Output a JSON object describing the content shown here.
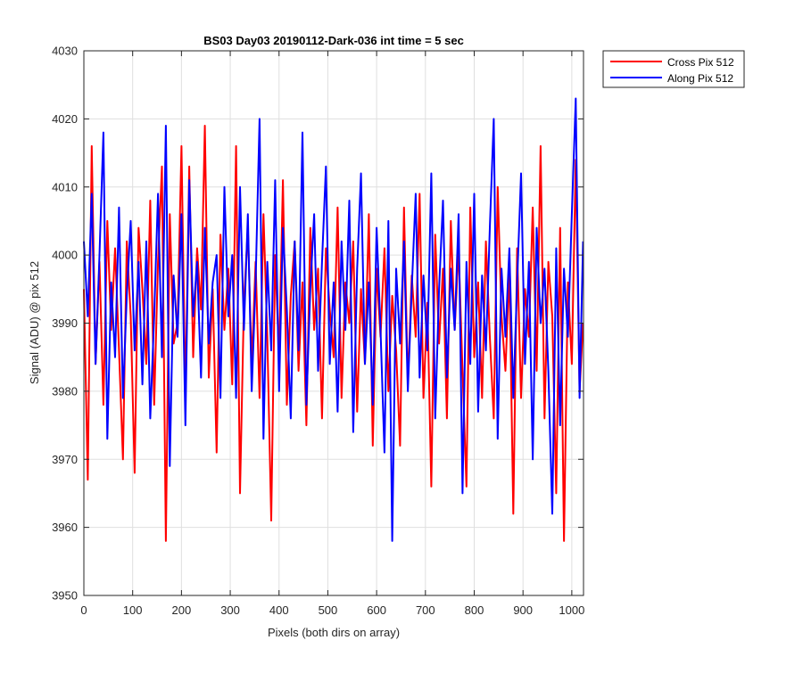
{
  "chart_data": {
    "type": "line",
    "title": "BS03 Day03 20190112-Dark-036 int time = 5 sec",
    "xlabel": "Pixels (both dirs on array)",
    "ylabel": "Signal (ADU) @ pix 512",
    "xlim": [
      0,
      1024
    ],
    "ylim": [
      3950,
      4030
    ],
    "xticks": [
      0,
      100,
      200,
      300,
      400,
      500,
      600,
      700,
      800,
      900,
      1000
    ],
    "yticks": [
      3950,
      3960,
      3970,
      3980,
      3990,
      4000,
      4010,
      4020,
      4030
    ],
    "grid": true,
    "legend_position": "outside-top-right",
    "series": [
      {
        "name": "Cross Pix 512",
        "color": "#ff0000",
        "x": [
          0,
          8,
          16,
          24,
          32,
          40,
          48,
          56,
          64,
          72,
          80,
          88,
          96,
          104,
          112,
          120,
          128,
          136,
          144,
          152,
          160,
          168,
          176,
          184,
          192,
          200,
          208,
          216,
          224,
          232,
          240,
          248,
          256,
          264,
          272,
          280,
          288,
          296,
          304,
          312,
          320,
          328,
          336,
          344,
          352,
          360,
          368,
          376,
          384,
          392,
          400,
          408,
          416,
          424,
          432,
          440,
          448,
          456,
          464,
          472,
          480,
          488,
          496,
          504,
          512,
          520,
          528,
          536,
          544,
          552,
          560,
          568,
          576,
          584,
          592,
          600,
          608,
          616,
          624,
          632,
          640,
          648,
          656,
          664,
          672,
          680,
          688,
          696,
          704,
          712,
          720,
          728,
          736,
          744,
          752,
          760,
          768,
          776,
          784,
          792,
          800,
          808,
          816,
          824,
          832,
          840,
          848,
          856,
          864,
          872,
          880,
          888,
          896,
          904,
          912,
          920,
          928,
          936,
          944,
          952,
          960,
          968,
          976,
          984,
          992,
          1000,
          1008,
          1016,
          1023
        ],
        "values": [
          3995,
          3967,
          4016,
          3984,
          3999,
          3978,
          4005,
          3989,
          4001,
          3986,
          3970,
          4002,
          3991,
          3968,
          4004,
          3995,
          3984,
          4008,
          3978,
          3999,
          4013,
          3958,
          4006,
          3987,
          3990,
          4016,
          3979,
          4013,
          3985,
          4001,
          3992,
          4019,
          3982,
          3995,
          3971,
          4003,
          3989,
          3998,
          3981,
          4016,
          3965,
          3993,
          4004,
          3984,
          3999,
          3979,
          4006,
          3988,
          3961,
          4000,
          3985,
          4011,
          3978,
          3994,
          4002,
          3983,
          3996,
          3975,
          4004,
          3989,
          3998,
          3976,
          4001,
          3992,
          3985,
          4007,
          3979,
          3996,
          3990,
          4002,
          3977,
          3995,
          3984,
          4006,
          3972,
          3998,
          3988,
          4001,
          3980,
          3994,
          3986,
          3972,
          4007,
          3981,
          3997,
          3988,
          4009,
          3979,
          3993,
          3966,
          4003,
          3987,
          3998,
          3976,
          4005,
          3989,
          4001,
          3983,
          3966,
          4007,
          3985,
          3996,
          3979,
          4002,
          3988,
          3976,
          4010,
          3991,
          3983,
          3998,
          3962,
          4001,
          3979,
          3995,
          3988,
          4007,
          3983,
          4016,
          3976,
          3999,
          3991,
          3965,
          4004,
          3958,
          3996,
          3984,
          4014,
          3980,
          3990
        ]
      },
      {
        "name": "Along Pix 512",
        "color": "#0000ff",
        "x": [
          0,
          8,
          16,
          24,
          32,
          40,
          48,
          56,
          64,
          72,
          80,
          88,
          96,
          104,
          112,
          120,
          128,
          136,
          144,
          152,
          160,
          168,
          176,
          184,
          192,
          200,
          208,
          216,
          224,
          232,
          240,
          248,
          256,
          264,
          272,
          280,
          288,
          296,
          304,
          312,
          320,
          328,
          336,
          344,
          352,
          360,
          368,
          376,
          384,
          392,
          400,
          408,
          416,
          424,
          432,
          440,
          448,
          456,
          464,
          472,
          480,
          488,
          496,
          504,
          512,
          520,
          528,
          536,
          544,
          552,
          560,
          568,
          576,
          584,
          592,
          600,
          608,
          616,
          624,
          632,
          640,
          648,
          656,
          664,
          672,
          680,
          688,
          696,
          704,
          712,
          720,
          728,
          736,
          744,
          752,
          760,
          768,
          776,
          784,
          792,
          800,
          808,
          816,
          824,
          832,
          840,
          848,
          856,
          864,
          872,
          880,
          888,
          896,
          904,
          912,
          920,
          928,
          936,
          944,
          952,
          960,
          968,
          976,
          984,
          992,
          1000,
          1008,
          1016,
          1023
        ],
        "values": [
          4002,
          3991,
          4009,
          3984,
          4000,
          4018,
          3973,
          3996,
          3985,
          4007,
          3979,
          3994,
          4005,
          3986,
          3999,
          3981,
          4002,
          3976,
          3991,
          4009,
          3985,
          4019,
          3969,
          3997,
          3988,
          4006,
          3975,
          4011,
          3991,
          3999,
          3982,
          4004,
          3987,
          3996,
          4000,
          3979,
          4010,
          3991,
          4000,
          3979,
          4010,
          3989,
          4006,
          3980,
          3996,
          4020,
          3973,
          3999,
          3986,
          4011,
          3980,
          4004,
          3992,
          3976,
          4002,
          3986,
          4018,
          3978,
          3995,
          4006,
          3983,
          3999,
          4013,
          3984,
          3996,
          3977,
          4002,
          3989,
          4008,
          3974,
          3998,
          4012,
          3984,
          3996,
          3978,
          4004,
          3989,
          3971,
          4005,
          3958,
          3998,
          3987,
          4002,
          3980,
          3995,
          4009,
          3982,
          3997,
          3986,
          4012,
          3976,
          3995,
          4008,
          3982,
          3998,
          3989,
          4006,
          3965,
          3999,
          3984,
          4009,
          3977,
          3997,
          3986,
          4004,
          4020,
          3973,
          3998,
          3988,
          4001,
          3979,
          3996,
          4012,
          3984,
          3999,
          3970,
          4004,
          3990,
          3998,
          3983,
          3962,
          4001,
          3975,
          3998,
          3988,
          4006,
          4023,
          3979,
          4002
        ]
      }
    ]
  }
}
